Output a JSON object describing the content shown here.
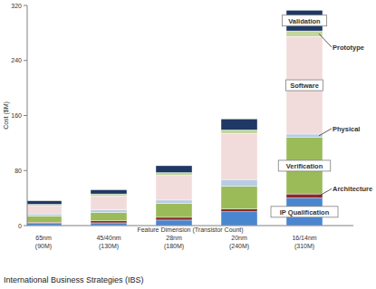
{
  "chart_data": {
    "type": "bar",
    "stacked": true,
    "grid": false,
    "y_label": "Cost ($M)",
    "x_label": "Feature Dimension (Transistor Count)",
    "source": "International Business Strategies (IBS)",
    "categories": [
      "65nm (90M)",
      "45/40nm (130M)",
      "28nm (180M)",
      "20nm (240M)",
      "16/14nm (310M)"
    ],
    "ylim": [
      0,
      320
    ],
    "yticks": [
      0,
      80,
      160,
      240,
      320
    ],
    "series": [
      {
        "name": "IP Qualification",
        "color": "#4a86d0",
        "values": [
          3,
          4,
          8,
          20,
          40
        ]
      },
      {
        "name": "Architecture",
        "color": "#8b2a2a",
        "values": [
          2,
          3,
          4,
          4,
          6
        ]
      },
      {
        "name": "Verification",
        "color": "#9bbb59",
        "values": [
          9,
          12,
          20,
          33,
          82
        ]
      },
      {
        "name": "Physical",
        "color": "#b8cce4",
        "values": [
          3,
          4,
          5,
          10,
          5
        ]
      },
      {
        "name": "Software",
        "color": "#f2dcdb",
        "values": [
          12,
          20,
          36,
          67,
          142
        ]
      },
      {
        "name": "Prototype",
        "color": "#c3d69b",
        "values": [
          2,
          3,
          4,
          5,
          8
        ]
      },
      {
        "name": "Validation",
        "color": "#1f3864",
        "values": [
          5,
          6,
          10,
          16,
          30
        ]
      }
    ]
  }
}
